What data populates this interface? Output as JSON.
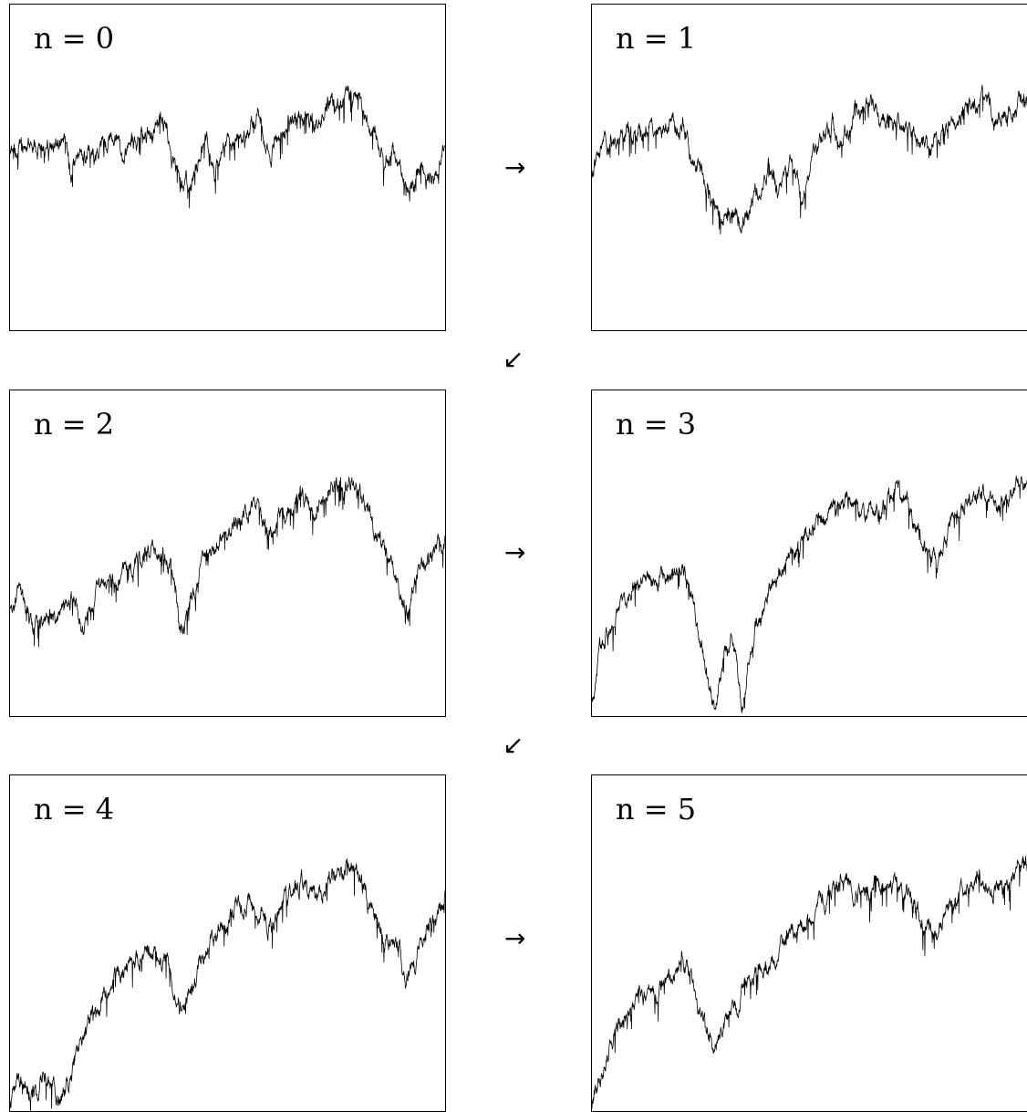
{
  "panels": [
    {
      "label": "n = 0"
    },
    {
      "label": "n = 1"
    },
    {
      "label": "n = 2"
    },
    {
      "label": "n = 3"
    },
    {
      "label": "n = 4"
    },
    {
      "label": "n = 5"
    }
  ],
  "arrows": {
    "right": "→",
    "down_left": "↙"
  },
  "chart_data": [
    {
      "type": "line",
      "panel_label": "n = 0",
      "seed": 11,
      "anchors": [
        [
          0.0,
          0.43
        ],
        [
          0.06,
          0.41
        ],
        [
          0.13,
          0.37
        ],
        [
          0.14,
          0.5
        ],
        [
          0.16,
          0.42
        ],
        [
          0.25,
          0.36
        ],
        [
          0.26,
          0.46
        ],
        [
          0.28,
          0.38
        ],
        [
          0.36,
          0.33
        ],
        [
          0.37,
          0.42
        ],
        [
          0.38,
          0.5
        ],
        [
          0.41,
          0.53
        ],
        [
          0.43,
          0.46
        ],
        [
          0.45,
          0.38
        ],
        [
          0.47,
          0.5
        ],
        [
          0.5,
          0.4
        ],
        [
          0.54,
          0.35
        ],
        [
          0.57,
          0.3
        ],
        [
          0.6,
          0.44
        ],
        [
          0.64,
          0.32
        ],
        [
          0.67,
          0.27
        ],
        [
          0.7,
          0.34
        ],
        [
          0.74,
          0.26
        ],
        [
          0.78,
          0.23
        ],
        [
          0.8,
          0.24
        ],
        [
          0.83,
          0.34
        ],
        [
          0.86,
          0.45
        ],
        [
          0.88,
          0.41
        ],
        [
          0.91,
          0.55
        ],
        [
          0.94,
          0.46
        ],
        [
          0.97,
          0.53
        ],
        [
          1.0,
          0.4
        ]
      ]
    },
    {
      "type": "line",
      "panel_label": "n = 1",
      "seed": 22,
      "anchors": [
        [
          0.0,
          0.5
        ],
        [
          0.02,
          0.4
        ],
        [
          0.1,
          0.36
        ],
        [
          0.2,
          0.32
        ],
        [
          0.21,
          0.38
        ],
        [
          0.24,
          0.48
        ],
        [
          0.26,
          0.57
        ],
        [
          0.28,
          0.65
        ],
        [
          0.31,
          0.63
        ],
        [
          0.33,
          0.66
        ],
        [
          0.35,
          0.6
        ],
        [
          0.37,
          0.55
        ],
        [
          0.39,
          0.46
        ],
        [
          0.41,
          0.55
        ],
        [
          0.44,
          0.46
        ],
        [
          0.46,
          0.56
        ],
        [
          0.5,
          0.4
        ],
        [
          0.53,
          0.32
        ],
        [
          0.55,
          0.39
        ],
        [
          0.58,
          0.31
        ],
        [
          0.62,
          0.27
        ],
        [
          0.66,
          0.33
        ],
        [
          0.7,
          0.34
        ],
        [
          0.74,
          0.42
        ],
        [
          0.79,
          0.33
        ],
        [
          0.82,
          0.3
        ],
        [
          0.86,
          0.24
        ],
        [
          0.89,
          0.31
        ],
        [
          0.93,
          0.28
        ],
        [
          0.97,
          0.22
        ],
        [
          1.0,
          0.26
        ]
      ]
    },
    {
      "type": "line",
      "panel_label": "n = 2",
      "seed": 33,
      "anchors": [
        [
          0.0,
          0.66
        ],
        [
          0.02,
          0.61
        ],
        [
          0.05,
          0.71
        ],
        [
          0.1,
          0.68
        ],
        [
          0.15,
          0.61
        ],
        [
          0.17,
          0.74
        ],
        [
          0.2,
          0.58
        ],
        [
          0.25,
          0.55
        ],
        [
          0.28,
          0.49
        ],
        [
          0.32,
          0.47
        ],
        [
          0.35,
          0.45
        ],
        [
          0.37,
          0.54
        ],
        [
          0.38,
          0.6
        ],
        [
          0.39,
          0.73
        ],
        [
          0.42,
          0.61
        ],
        [
          0.45,
          0.5
        ],
        [
          0.48,
          0.44
        ],
        [
          0.52,
          0.36
        ],
        [
          0.56,
          0.32
        ],
        [
          0.59,
          0.4
        ],
        [
          0.63,
          0.34
        ],
        [
          0.67,
          0.27
        ],
        [
          0.7,
          0.32
        ],
        [
          0.74,
          0.26
        ],
        [
          0.78,
          0.24
        ],
        [
          0.8,
          0.25
        ],
        [
          0.83,
          0.36
        ],
        [
          0.86,
          0.46
        ],
        [
          0.88,
          0.5
        ],
        [
          0.91,
          0.68
        ],
        [
          0.94,
          0.52
        ],
        [
          0.97,
          0.49
        ],
        [
          1.0,
          0.43
        ]
      ]
    },
    {
      "type": "line",
      "panel_label": "n = 3",
      "seed": 44,
      "anchors": [
        [
          0.0,
          0.95
        ],
        [
          0.02,
          0.78
        ],
        [
          0.05,
          0.66
        ],
        [
          0.09,
          0.6
        ],
        [
          0.14,
          0.55
        ],
        [
          0.18,
          0.52
        ],
        [
          0.2,
          0.49
        ],
        [
          0.22,
          0.6
        ],
        [
          0.24,
          0.76
        ],
        [
          0.27,
          0.98
        ],
        [
          0.29,
          0.82
        ],
        [
          0.31,
          0.74
        ],
        [
          0.33,
          0.97
        ],
        [
          0.36,
          0.7
        ],
        [
          0.4,
          0.57
        ],
        [
          0.44,
          0.48
        ],
        [
          0.48,
          0.4
        ],
        [
          0.52,
          0.35
        ],
        [
          0.56,
          0.3
        ],
        [
          0.59,
          0.36
        ],
        [
          0.63,
          0.32
        ],
        [
          0.67,
          0.27
        ],
        [
          0.7,
          0.33
        ],
        [
          0.73,
          0.45
        ],
        [
          0.76,
          0.5
        ],
        [
          0.79,
          0.38
        ],
        [
          0.82,
          0.32
        ],
        [
          0.86,
          0.27
        ],
        [
          0.89,
          0.33
        ],
        [
          0.93,
          0.26
        ],
        [
          0.97,
          0.22
        ],
        [
          1.0,
          0.26
        ]
      ]
    },
    {
      "type": "line",
      "panel_label": "n = 4",
      "seed": 55,
      "anchors": [
        [
          0.0,
          1.0
        ],
        [
          0.02,
          0.9
        ],
        [
          0.05,
          0.95
        ],
        [
          0.08,
          0.88
        ],
        [
          0.12,
          0.98
        ],
        [
          0.15,
          0.85
        ],
        [
          0.18,
          0.73
        ],
        [
          0.22,
          0.62
        ],
        [
          0.26,
          0.56
        ],
        [
          0.3,
          0.52
        ],
        [
          0.34,
          0.5
        ],
        [
          0.36,
          0.54
        ],
        [
          0.38,
          0.6
        ],
        [
          0.39,
          0.68
        ],
        [
          0.42,
          0.6
        ],
        [
          0.45,
          0.5
        ],
        [
          0.48,
          0.43
        ],
        [
          0.52,
          0.36
        ],
        [
          0.56,
          0.34
        ],
        [
          0.59,
          0.42
        ],
        [
          0.63,
          0.34
        ],
        [
          0.67,
          0.28
        ],
        [
          0.7,
          0.32
        ],
        [
          0.74,
          0.27
        ],
        [
          0.78,
          0.24
        ],
        [
          0.8,
          0.25
        ],
        [
          0.83,
          0.36
        ],
        [
          0.86,
          0.46
        ],
        [
          0.89,
          0.48
        ],
        [
          0.91,
          0.6
        ],
        [
          0.94,
          0.5
        ],
        [
          0.97,
          0.4
        ],
        [
          1.0,
          0.34
        ]
      ]
    },
    {
      "type": "line",
      "panel_label": "n = 5",
      "seed": 66,
      "anchors": [
        [
          0.0,
          1.0
        ],
        [
          0.02,
          0.88
        ],
        [
          0.05,
          0.75
        ],
        [
          0.09,
          0.68
        ],
        [
          0.14,
          0.62
        ],
        [
          0.18,
          0.57
        ],
        [
          0.2,
          0.52
        ],
        [
          0.22,
          0.6
        ],
        [
          0.24,
          0.7
        ],
        [
          0.27,
          0.8
        ],
        [
          0.29,
          0.74
        ],
        [
          0.31,
          0.7
        ],
        [
          0.33,
          0.62
        ],
        [
          0.36,
          0.58
        ],
        [
          0.4,
          0.52
        ],
        [
          0.44,
          0.44
        ],
        [
          0.48,
          0.38
        ],
        [
          0.52,
          0.32
        ],
        [
          0.56,
          0.28
        ],
        [
          0.59,
          0.32
        ],
        [
          0.63,
          0.3
        ],
        [
          0.67,
          0.28
        ],
        [
          0.7,
          0.33
        ],
        [
          0.73,
          0.42
        ],
        [
          0.76,
          0.45
        ],
        [
          0.79,
          0.36
        ],
        [
          0.82,
          0.31
        ],
        [
          0.86,
          0.26
        ],
        [
          0.89,
          0.32
        ],
        [
          0.93,
          0.26
        ],
        [
          0.97,
          0.22
        ],
        [
          1.0,
          0.26
        ]
      ]
    }
  ]
}
